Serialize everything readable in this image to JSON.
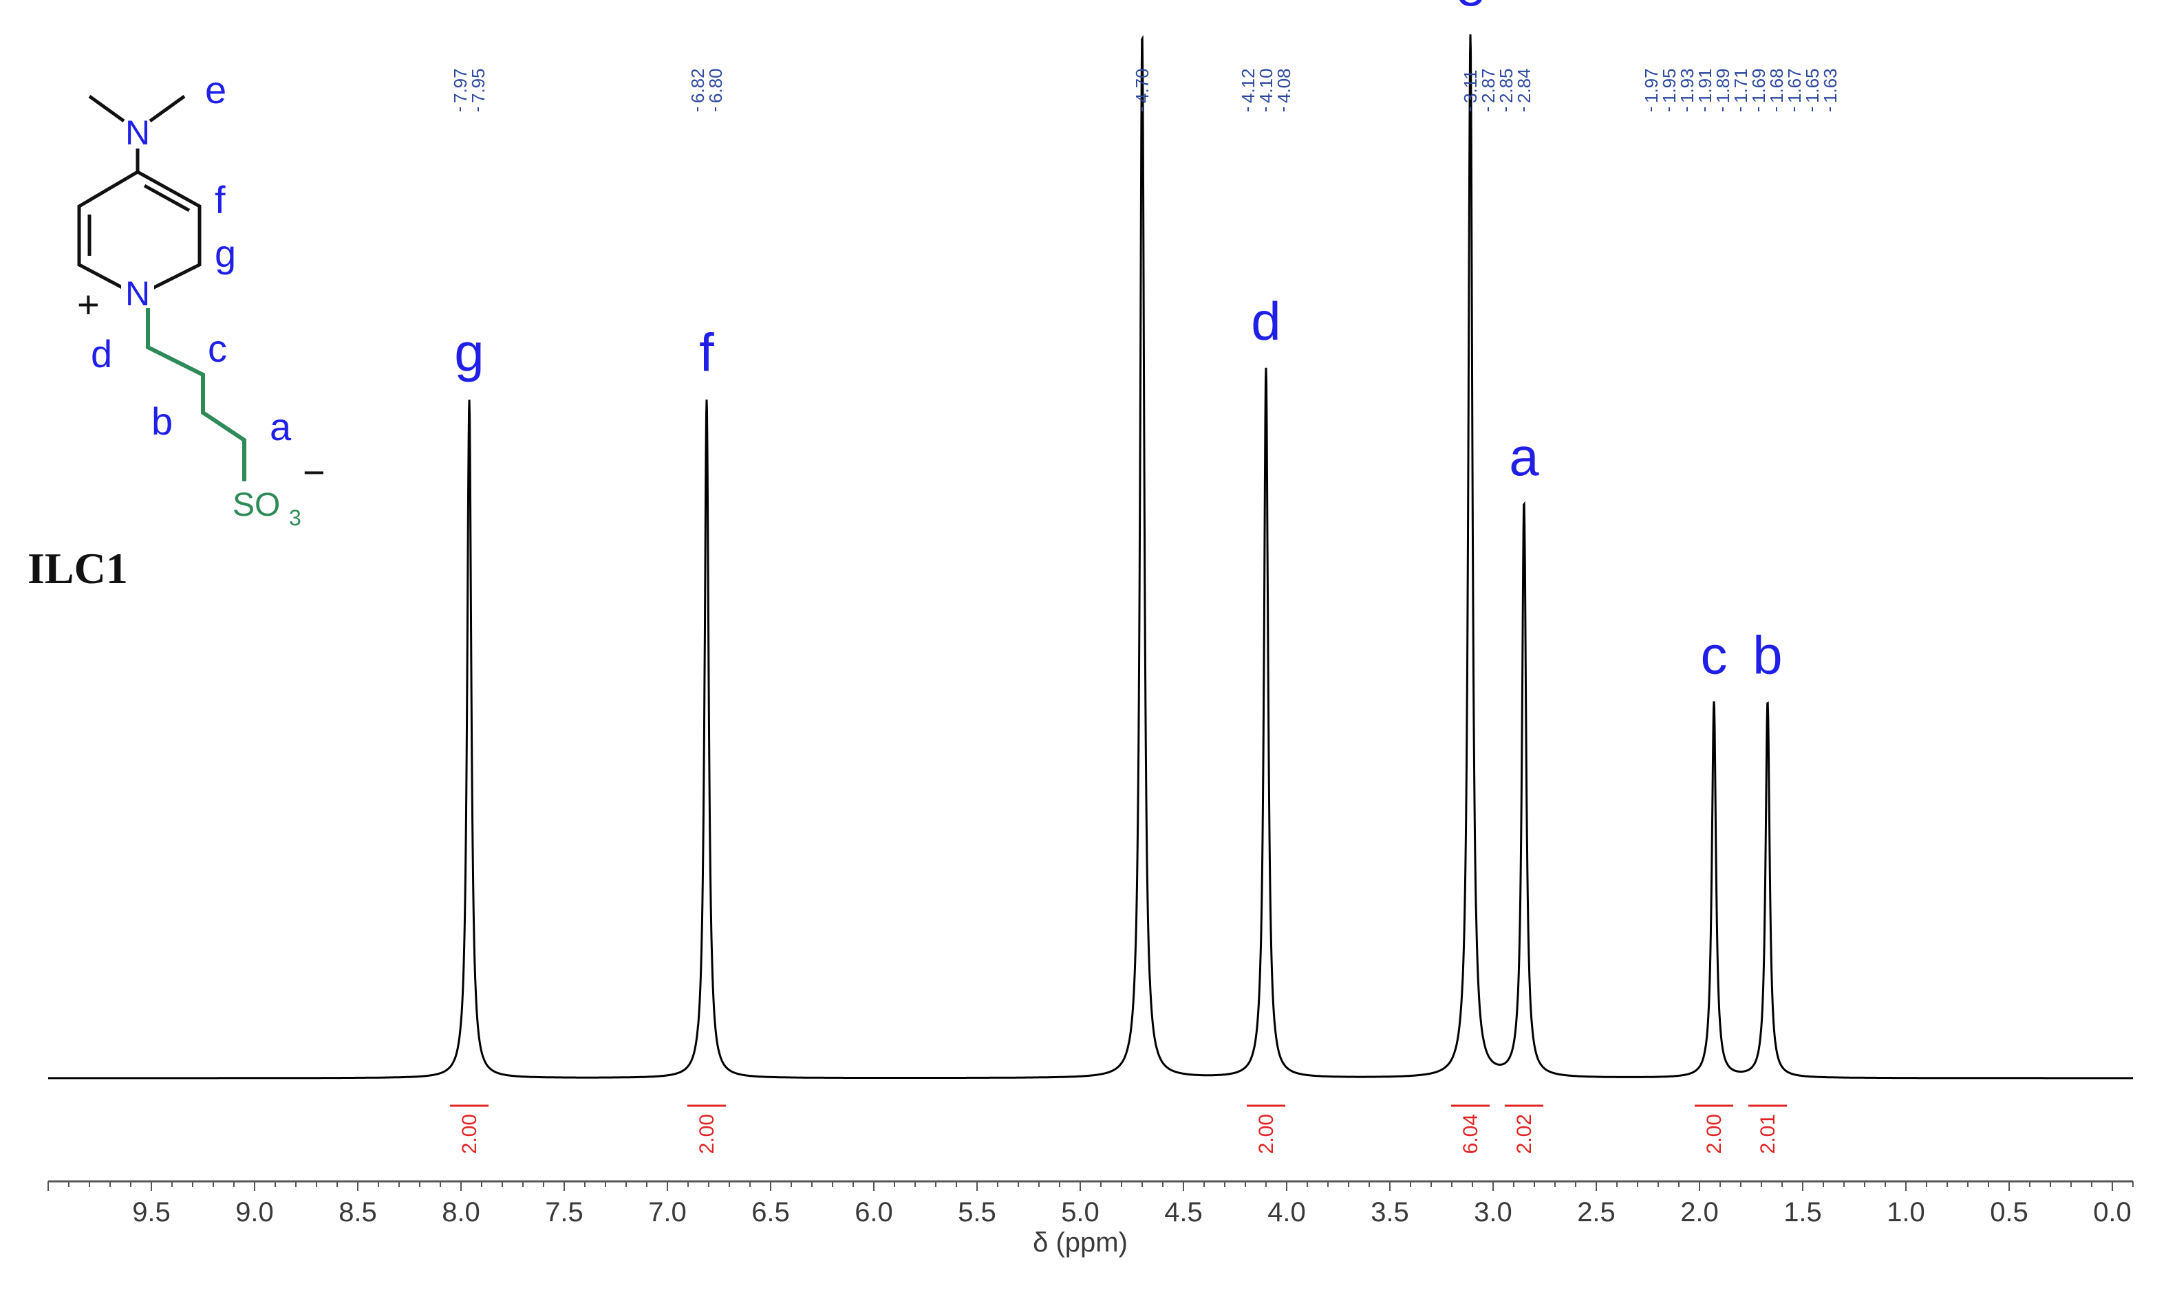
{
  "chart_data": {
    "type": "line",
    "title": "",
    "xlabel": "δ (ppm)",
    "ylabel": "",
    "xlim": [
      10.0,
      -0.1
    ],
    "x_reversed": true,
    "xticks": [
      "9.5",
      "9.0",
      "8.5",
      "8.0",
      "7.5",
      "7.0",
      "6.5",
      "6.0",
      "5.5",
      "5.0",
      "4.5",
      "4.0",
      "3.5",
      "3.0",
      "2.5",
      "2.0",
      "1.5",
      "1.0",
      "0.5",
      "0.0"
    ],
    "grid": false,
    "legend": "none",
    "series": [
      {
        "peaks": [
          {
            "label": "g",
            "center": 7.96,
            "height": 0.65
          },
          {
            "label": "f",
            "center": 6.81,
            "height": 0.65
          },
          {
            "label": "",
            "center": 4.7,
            "height": 1.0
          },
          {
            "label": "d",
            "center": 4.1,
            "height": 0.68
          },
          {
            "label": "e",
            "center": 3.11,
            "height": 1.0
          },
          {
            "label": "a",
            "center": 2.85,
            "height": 0.55
          },
          {
            "label": "c",
            "center": 1.93,
            "height": 0.36
          },
          {
            "label": "b",
            "center": 1.67,
            "height": 0.36
          }
        ]
      }
    ],
    "shift_labels": [
      {
        "values": [
          "7.97",
          "7.95"
        ]
      },
      {
        "values": [
          "6.82",
          "6.80"
        ]
      },
      {
        "values": [
          "4.70"
        ]
      },
      {
        "values": [
          "4.12",
          "4.10",
          "4.08"
        ]
      },
      {
        "values": [
          "3.11",
          "2.87",
          "2.85",
          "2.84"
        ]
      },
      {
        "values": [
          "1.97",
          "1.95",
          "1.93",
          "1.91",
          "1.89",
          "1.71",
          "1.69",
          "1.68",
          "1.67",
          "1.65",
          "1.63"
        ]
      }
    ],
    "integrals": [
      {
        "center": 7.96,
        "value": "2.00"
      },
      {
        "center": 6.81,
        "value": "2.00"
      },
      {
        "center": 4.1,
        "value": "2.00"
      },
      {
        "center": 3.11,
        "value": "6.04"
      },
      {
        "center": 2.85,
        "value": "2.02"
      },
      {
        "center": 1.93,
        "value": "2.00"
      },
      {
        "center": 1.67,
        "value": "2.01"
      }
    ],
    "colors": {
      "spectrum": "#000000",
      "peak_labels": "#1f1fe6",
      "shift_labels": "#2e4a9e",
      "integrals": "#e02424",
      "chain": "#2e8b57"
    }
  },
  "structure": {
    "compound_name": "ILC1",
    "atom_labels": {
      "n_top": "N",
      "n_ring": "N",
      "plus": "+",
      "minus": "−",
      "so3": "SO",
      "sub3": "3"
    },
    "proton_labels": {
      "e": "e",
      "f": "f",
      "g": "g",
      "d": "d",
      "c": "c",
      "b": "b",
      "a": "a"
    }
  }
}
